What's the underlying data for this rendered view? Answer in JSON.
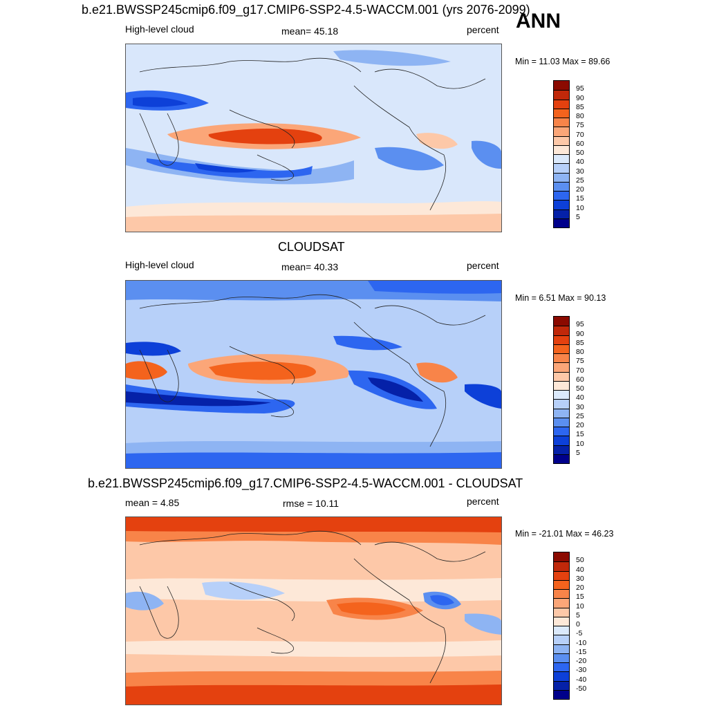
{
  "season": "ANN",
  "panels": [
    {
      "title": "b.e21.BWSSP245cmip6.f09_g17.CMIP6-SSP2-4.5-WACCM.001 (yrs 2076-2099)",
      "left_label": "High-level cloud",
      "center_label": "mean=  45.18",
      "units": "percent",
      "minmax": "Min =  11.03 Max =  89.66",
      "colorbar": {
        "labels": [
          "95",
          "90",
          "85",
          "80",
          "75",
          "70",
          "60",
          "50",
          "40",
          "30",
          "25",
          "20",
          "15",
          "10",
          "5"
        ],
        "colors": [
          "#8b0a00",
          "#c0280a",
          "#e4410f",
          "#f4631d",
          "#f88449",
          "#fba678",
          "#fdc8a8",
          "#fde8d8",
          "#dbe9fb",
          "#b7d0f9",
          "#8eb4f3",
          "#5b8ff0",
          "#2d66f0",
          "#0d40d8",
          "#0521a8",
          "#00008b"
        ]
      },
      "fields": {
        "background": "#d9e7fb",
        "bands": [
          {
            "name": "itcz-warm-pool",
            "color": "#fba678",
            "cls": "warm"
          },
          {
            "name": "itcz-core",
            "color": "#e4410f",
            "cls": "warm"
          },
          {
            "name": "subtropical-south",
            "color": "#5b8ff0",
            "cls": "cool"
          },
          {
            "name": "subtropical-south-core",
            "color": "#0d40d8",
            "cls": "cool"
          },
          {
            "name": "sahara-dry",
            "color": "#2d66f0",
            "cls": "cool"
          },
          {
            "name": "antarctic-warm",
            "color": "#fdc8a8",
            "cls": "warm"
          },
          {
            "name": "amazon-warm",
            "color": "#fdc8a8",
            "cls": "warm"
          },
          {
            "name": "arctic-cool",
            "color": "#b7d0f9",
            "cls": "cool"
          }
        ]
      }
    },
    {
      "title": "CLOUDSAT",
      "left_label": "High-level cloud",
      "center_label": "mean=  40.33",
      "units": "percent",
      "minmax": "Min =   6.51 Max =  90.13",
      "colorbar": {
        "labels": [
          "95",
          "90",
          "85",
          "80",
          "75",
          "70",
          "60",
          "50",
          "40",
          "30",
          "25",
          "20",
          "15",
          "10",
          "5"
        ],
        "colors": [
          "#8b0a00",
          "#c0280a",
          "#e4410f",
          "#f4631d",
          "#f88449",
          "#fba678",
          "#fdc8a8",
          "#fde8d8",
          "#dbe9fb",
          "#b7d0f9",
          "#8eb4f3",
          "#5b8ff0",
          "#2d66f0",
          "#0d40d8",
          "#0521a8",
          "#00008b"
        ]
      },
      "fields": {
        "background": "#b7d0f9",
        "bands": [
          {
            "name": "itcz-warm-pool",
            "color": "#fba678",
            "cls": "warm"
          },
          {
            "name": "itcz-core",
            "color": "#f4631d",
            "cls": "warm"
          },
          {
            "name": "subtropical-south",
            "color": "#2d66f0",
            "cls": "cool"
          },
          {
            "name": "subtropical-south-core",
            "color": "#0521a8",
            "cls": "cool"
          },
          {
            "name": "africa-warm",
            "color": "#f4631d",
            "cls": "warm"
          },
          {
            "name": "amazon-warm",
            "color": "#f88449",
            "cls": "warm"
          },
          {
            "name": "pacific-dry",
            "color": "#0d40d8",
            "cls": "cool"
          },
          {
            "name": "arctic-dry",
            "color": "#2d66f0",
            "cls": "cool"
          },
          {
            "name": "antarctic-dry",
            "color": "#2d66f0",
            "cls": "cool"
          }
        ]
      }
    },
    {
      "title": "b.e21.BWSSP245cmip6.f09_g17.CMIP6-SSP2-4.5-WACCM.001 - CLOUDSAT",
      "left_label": "mean =   4.85",
      "center_label": "rmse =  10.11",
      "units": "percent",
      "minmax": "Min = -21.01 Max =  46.23",
      "colorbar": {
        "labels": [
          "50",
          "40",
          "30",
          "20",
          "15",
          "10",
          "5",
          "0",
          "-5",
          "-10",
          "-15",
          "-20",
          "-30",
          "-40",
          "-50"
        ],
        "colors": [
          "#8b0a00",
          "#c0280a",
          "#e4410f",
          "#f4631d",
          "#f88449",
          "#fba678",
          "#fdc8a8",
          "#fde8d8",
          "#dbe9fb",
          "#b7d0f9",
          "#8eb4f3",
          "#5b8ff0",
          "#2d66f0",
          "#0d40d8",
          "#0521a8",
          "#00008b"
        ]
      },
      "fields": {
        "background": "#fdc8a8",
        "bands": [
          {
            "name": "arctic-diff",
            "color": "#e4410f",
            "cls": "warm"
          },
          {
            "name": "antarctic-diff",
            "color": "#e4410f",
            "cls": "warm"
          },
          {
            "name": "pacific-diff",
            "color": "#f4631d",
            "cls": "warm"
          },
          {
            "name": "amazon-diff",
            "color": "#2d66f0",
            "cls": "cool"
          },
          {
            "name": "indian-diff",
            "color": "#8eb4f3",
            "cls": "cool"
          },
          {
            "name": "tropics-neutral",
            "color": "#fde8d8",
            "cls": "neutral"
          }
        ]
      }
    }
  ]
}
